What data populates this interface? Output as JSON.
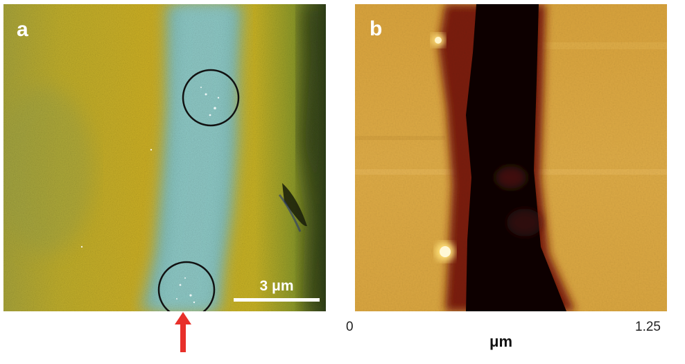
{
  "panel_a": {
    "label": "a",
    "scale_bar_label": "3 μm",
    "highlight_circle_count": 2,
    "colors": {
      "background": "#c4b124",
      "stripe": "#7fbcb8",
      "circle": "#111111",
      "arrow": "#e8302a",
      "dark_edge": "#3a4a12"
    }
  },
  "panel_b": {
    "label": "b",
    "axis_min": "0",
    "axis_max": "1.25",
    "axis_unit": "μm",
    "colors": {
      "background": "#d9a640",
      "trench": "#0a0503",
      "rim": "#7a1a0c",
      "particle": "#fff6c0"
    }
  }
}
